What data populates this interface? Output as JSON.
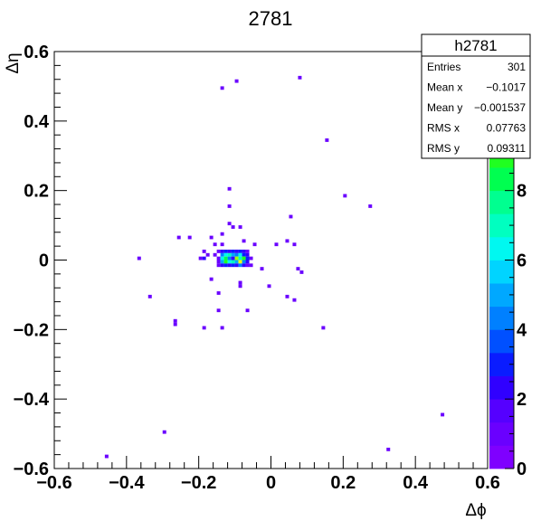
{
  "chart_data": {
    "type": "heatmap",
    "title": "2781",
    "xlabel": "Δϕ",
    "ylabel": "Δη",
    "xlim": [
      -0.6,
      0.6
    ],
    "ylim": [
      -0.6,
      0.6
    ],
    "xticks": [
      "−0.6",
      "−0.4",
      "−0.2",
      "0",
      "0.2",
      "0.4",
      "0.6"
    ],
    "xtick_values": [
      -0.6,
      -0.4,
      -0.2,
      0,
      0.2,
      0.4,
      0.6
    ],
    "yticks": [
      "−0.6",
      "−0.4",
      "−0.2",
      "0",
      "0.2",
      "0.4",
      "0.6"
    ],
    "ytick_values": [
      -0.6,
      -0.4,
      -0.2,
      0,
      0.2,
      0.4,
      0.6
    ],
    "colorbar": {
      "min": 0,
      "max": 12,
      "ticks": [
        "0",
        "2",
        "4",
        "6",
        "8"
      ],
      "tick_values": [
        0,
        2,
        4,
        6,
        8
      ],
      "top_label": "2",
      "colors": [
        "#7f00ff",
        "#6a00ff",
        "#5500ff",
        "#3000ff",
        "#0a1cff",
        "#0050ff",
        "#0080ff",
        "#00a8ff",
        "#00d4ff",
        "#00f8f0",
        "#00ffc0",
        "#00ff90",
        "#00ff50",
        "#20ff20",
        "#60ff00",
        "#a0ff00",
        "#d8ff00",
        "#ffff00"
      ]
    },
    "stats": {
      "name": "h2781",
      "rows": [
        {
          "label": "Entries",
          "value": "301"
        },
        {
          "label": "Mean x",
          "value": "−0.1017"
        },
        {
          "label": "Mean y",
          "value": "−0.001537"
        },
        {
          "label": "RMS x",
          "value": "0.07763"
        },
        {
          "label": "RMS y",
          "value": "0.09311"
        }
      ]
    },
    "bin_width": 0.01,
    "points": [
      {
        "x": 0.08,
        "y": 0.525,
        "v": 1
      },
      {
        "x": -0.095,
        "y": 0.515,
        "v": 1
      },
      {
        "x": -0.135,
        "y": 0.495,
        "v": 1
      },
      {
        "x": 0.155,
        "y": 0.345,
        "v": 1
      },
      {
        "x": -0.115,
        "y": 0.205,
        "v": 1
      },
      {
        "x": 0.205,
        "y": 0.185,
        "v": 1
      },
      {
        "x": 0.275,
        "y": 0.155,
        "v": 1
      },
      {
        "x": -0.115,
        "y": 0.155,
        "v": 1
      },
      {
        "x": 0.055,
        "y": 0.125,
        "v": 1
      },
      {
        "x": -0.115,
        "y": 0.105,
        "v": 1
      },
      {
        "x": -0.105,
        "y": 0.095,
        "v": 1
      },
      {
        "x": -0.085,
        "y": 0.095,
        "v": 1
      },
      {
        "x": -0.135,
        "y": 0.075,
        "v": 1
      },
      {
        "x": -0.255,
        "y": 0.065,
        "v": 1
      },
      {
        "x": -0.225,
        "y": 0.065,
        "v": 1
      },
      {
        "x": -0.165,
        "y": 0.065,
        "v": 1
      },
      {
        "x": -0.135,
        "y": 0.045,
        "v": 1
      },
      {
        "x": -0.155,
        "y": 0.045,
        "v": 1
      },
      {
        "x": -0.075,
        "y": 0.055,
        "v": 1
      },
      {
        "x": -0.045,
        "y": 0.045,
        "v": 1
      },
      {
        "x": 0.015,
        "y": 0.045,
        "v": 1
      },
      {
        "x": 0.045,
        "y": 0.055,
        "v": 1
      },
      {
        "x": 0.065,
        "y": 0.045,
        "v": 1
      },
      {
        "x": -0.185,
        "y": 0.025,
        "v": 1
      },
      {
        "x": -0.175,
        "y": 0.015,
        "v": 1
      },
      {
        "x": -0.195,
        "y": 0.005,
        "v": 1
      },
      {
        "x": -0.185,
        "y": 0.005,
        "v": 2
      },
      {
        "x": -0.365,
        "y": 0.005,
        "v": 1
      },
      {
        "x": -0.155,
        "y": 0.015,
        "v": 1
      },
      {
        "x": -0.145,
        "y": 0.025,
        "v": 1
      },
      {
        "x": -0.145,
        "y": 0.005,
        "v": 1
      },
      {
        "x": -0.145,
        "y": -0.005,
        "v": 1
      },
      {
        "x": -0.145,
        "y": -0.015,
        "v": 1
      },
      {
        "x": -0.135,
        "y": 0.025,
        "v": 2
      },
      {
        "x": -0.135,
        "y": 0.015,
        "v": 4
      },
      {
        "x": -0.135,
        "y": 0.005,
        "v": 6
      },
      {
        "x": -0.135,
        "y": -0.005,
        "v": 5
      },
      {
        "x": -0.135,
        "y": -0.015,
        "v": 2
      },
      {
        "x": -0.125,
        "y": 0.025,
        "v": 3
      },
      {
        "x": -0.125,
        "y": 0.015,
        "v": 6
      },
      {
        "x": -0.125,
        "y": 0.005,
        "v": 8
      },
      {
        "x": -0.125,
        "y": -0.005,
        "v": 9
      },
      {
        "x": -0.125,
        "y": -0.015,
        "v": 3
      },
      {
        "x": -0.115,
        "y": 0.025,
        "v": 2
      },
      {
        "x": -0.115,
        "y": 0.015,
        "v": 7
      },
      {
        "x": -0.115,
        "y": 0.005,
        "v": 4
      },
      {
        "x": -0.115,
        "y": -0.005,
        "v": 6
      },
      {
        "x": -0.115,
        "y": -0.015,
        "v": 2
      },
      {
        "x": -0.105,
        "y": 0.025,
        "v": 3
      },
      {
        "x": -0.105,
        "y": 0.015,
        "v": 5
      },
      {
        "x": -0.105,
        "y": 0.005,
        "v": 2
      },
      {
        "x": -0.105,
        "y": -0.005,
        "v": 7
      },
      {
        "x": -0.105,
        "y": -0.015,
        "v": 3
      },
      {
        "x": -0.095,
        "y": 0.025,
        "v": 2
      },
      {
        "x": -0.095,
        "y": 0.015,
        "v": 4
      },
      {
        "x": -0.095,
        "y": 0.005,
        "v": 10
      },
      {
        "x": -0.095,
        "y": -0.005,
        "v": 5
      },
      {
        "x": -0.095,
        "y": -0.015,
        "v": 2
      },
      {
        "x": -0.085,
        "y": 0.025,
        "v": 3
      },
      {
        "x": -0.085,
        "y": 0.015,
        "v": 6
      },
      {
        "x": -0.085,
        "y": 0.005,
        "v": 7
      },
      {
        "x": -0.085,
        "y": -0.005,
        "v": 12
      },
      {
        "x": -0.085,
        "y": -0.015,
        "v": 4
      },
      {
        "x": -0.075,
        "y": 0.025,
        "v": 2
      },
      {
        "x": -0.075,
        "y": 0.015,
        "v": 3
      },
      {
        "x": -0.075,
        "y": 0.005,
        "v": 9
      },
      {
        "x": -0.075,
        "y": -0.005,
        "v": 4
      },
      {
        "x": -0.075,
        "y": -0.015,
        "v": 2
      },
      {
        "x": -0.065,
        "y": 0.025,
        "v": 1
      },
      {
        "x": -0.065,
        "y": 0.015,
        "v": 2
      },
      {
        "x": -0.065,
        "y": 0.005,
        "v": 3
      },
      {
        "x": -0.065,
        "y": -0.005,
        "v": 2
      },
      {
        "x": -0.065,
        "y": -0.015,
        "v": 1
      },
      {
        "x": -0.055,
        "y": 0.005,
        "v": 1
      },
      {
        "x": -0.055,
        "y": -0.015,
        "v": 1
      },
      {
        "x": -0.025,
        "y": -0.025,
        "v": 1
      },
      {
        "x": 0.075,
        "y": -0.025,
        "v": 1
      },
      {
        "x": 0.085,
        "y": -0.035,
        "v": 1
      },
      {
        "x": -0.165,
        "y": -0.055,
        "v": 1
      },
      {
        "x": -0.085,
        "y": -0.065,
        "v": 1
      },
      {
        "x": -0.085,
        "y": -0.075,
        "v": 1
      },
      {
        "x": -0.005,
        "y": -0.075,
        "v": 1
      },
      {
        "x": -0.145,
        "y": -0.095,
        "v": 1
      },
      {
        "x": 0.045,
        "y": -0.105,
        "v": 1
      },
      {
        "x": 0.065,
        "y": -0.115,
        "v": 1
      },
      {
        "x": -0.335,
        "y": -0.105,
        "v": 1
      },
      {
        "x": -0.145,
        "y": -0.145,
        "v": 1
      },
      {
        "x": -0.065,
        "y": -0.145,
        "v": 1
      },
      {
        "x": -0.265,
        "y": -0.175,
        "v": 1
      },
      {
        "x": -0.265,
        "y": -0.185,
        "v": 1
      },
      {
        "x": -0.185,
        "y": -0.195,
        "v": 1
      },
      {
        "x": -0.135,
        "y": -0.195,
        "v": 1
      },
      {
        "x": 0.145,
        "y": -0.195,
        "v": 1
      },
      {
        "x": 0.475,
        "y": -0.445,
        "v": 1
      },
      {
        "x": -0.295,
        "y": -0.495,
        "v": 1
      },
      {
        "x": 0.325,
        "y": -0.545,
        "v": 1
      },
      {
        "x": -0.455,
        "y": -0.565,
        "v": 1
      }
    ]
  }
}
